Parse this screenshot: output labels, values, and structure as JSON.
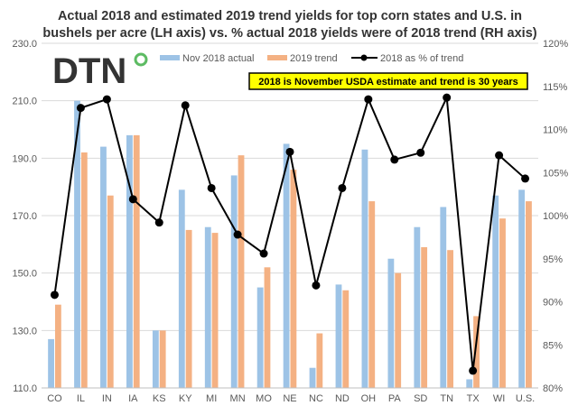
{
  "chart_data": {
    "type": "bar",
    "title_lines": [
      "Actual 2018 and estimated 2019 trend yields for top corn states and U.S. in",
      "bushels per acre (LH axis) vs. % actual 2018 yields were of 2018 trend (RH axis)"
    ],
    "categories": [
      "CO",
      "IL",
      "IN",
      "IA",
      "KS",
      "KY",
      "MI",
      "MN",
      "MO",
      "NE",
      "NC",
      "ND",
      "OH",
      "PA",
      "SD",
      "TN",
      "TX",
      "WI",
      "U.S."
    ],
    "left_axis": {
      "min": 110,
      "max": 230,
      "step": 20,
      "ticks": [
        "110.0",
        "130.0",
        "150.0",
        "170.0",
        "190.0",
        "210.0",
        "230.0"
      ]
    },
    "right_axis": {
      "min": 80,
      "max": 120,
      "step": 5,
      "ticks": [
        "80%",
        "85%",
        "90%",
        "95%",
        "100%",
        "105%",
        "110%",
        "115%",
        "120%"
      ]
    },
    "grid": true,
    "legend_position": "top",
    "series": [
      {
        "name": "Nov 2018 actual",
        "kind": "bar",
        "axis": "left",
        "color": "#9dc3e6",
        "values": [
          127,
          210,
          194,
          198,
          130,
          179,
          166,
          184,
          145,
          195,
          117,
          146,
          193,
          155,
          166,
          173,
          113,
          177,
          179
        ]
      },
      {
        "name": "2019 trend",
        "kind": "bar",
        "axis": "left",
        "color": "#f4b183",
        "values": [
          139,
          192,
          177,
          198,
          130,
          165,
          164,
          191,
          152,
          186,
          129,
          144,
          175,
          150,
          159,
          158,
          135,
          169,
          175
        ]
      },
      {
        "name": "2018 as % of trend",
        "kind": "line",
        "axis": "right",
        "color": "#000000",
        "values": [
          90.8,
          112.5,
          113.5,
          101.9,
          99.2,
          112.8,
          103.2,
          97.8,
          95.6,
          107.4,
          91.9,
          103.2,
          113.5,
          106.5,
          107.3,
          113.7,
          82.0,
          107.0,
          104.3
        ]
      }
    ],
    "annotation": "2018 is November USDA estimate and trend is 30 years",
    "annotation_bg": "#ffff00"
  },
  "logo_text": "DTN",
  "logo_accent_color": "#5dbb63"
}
